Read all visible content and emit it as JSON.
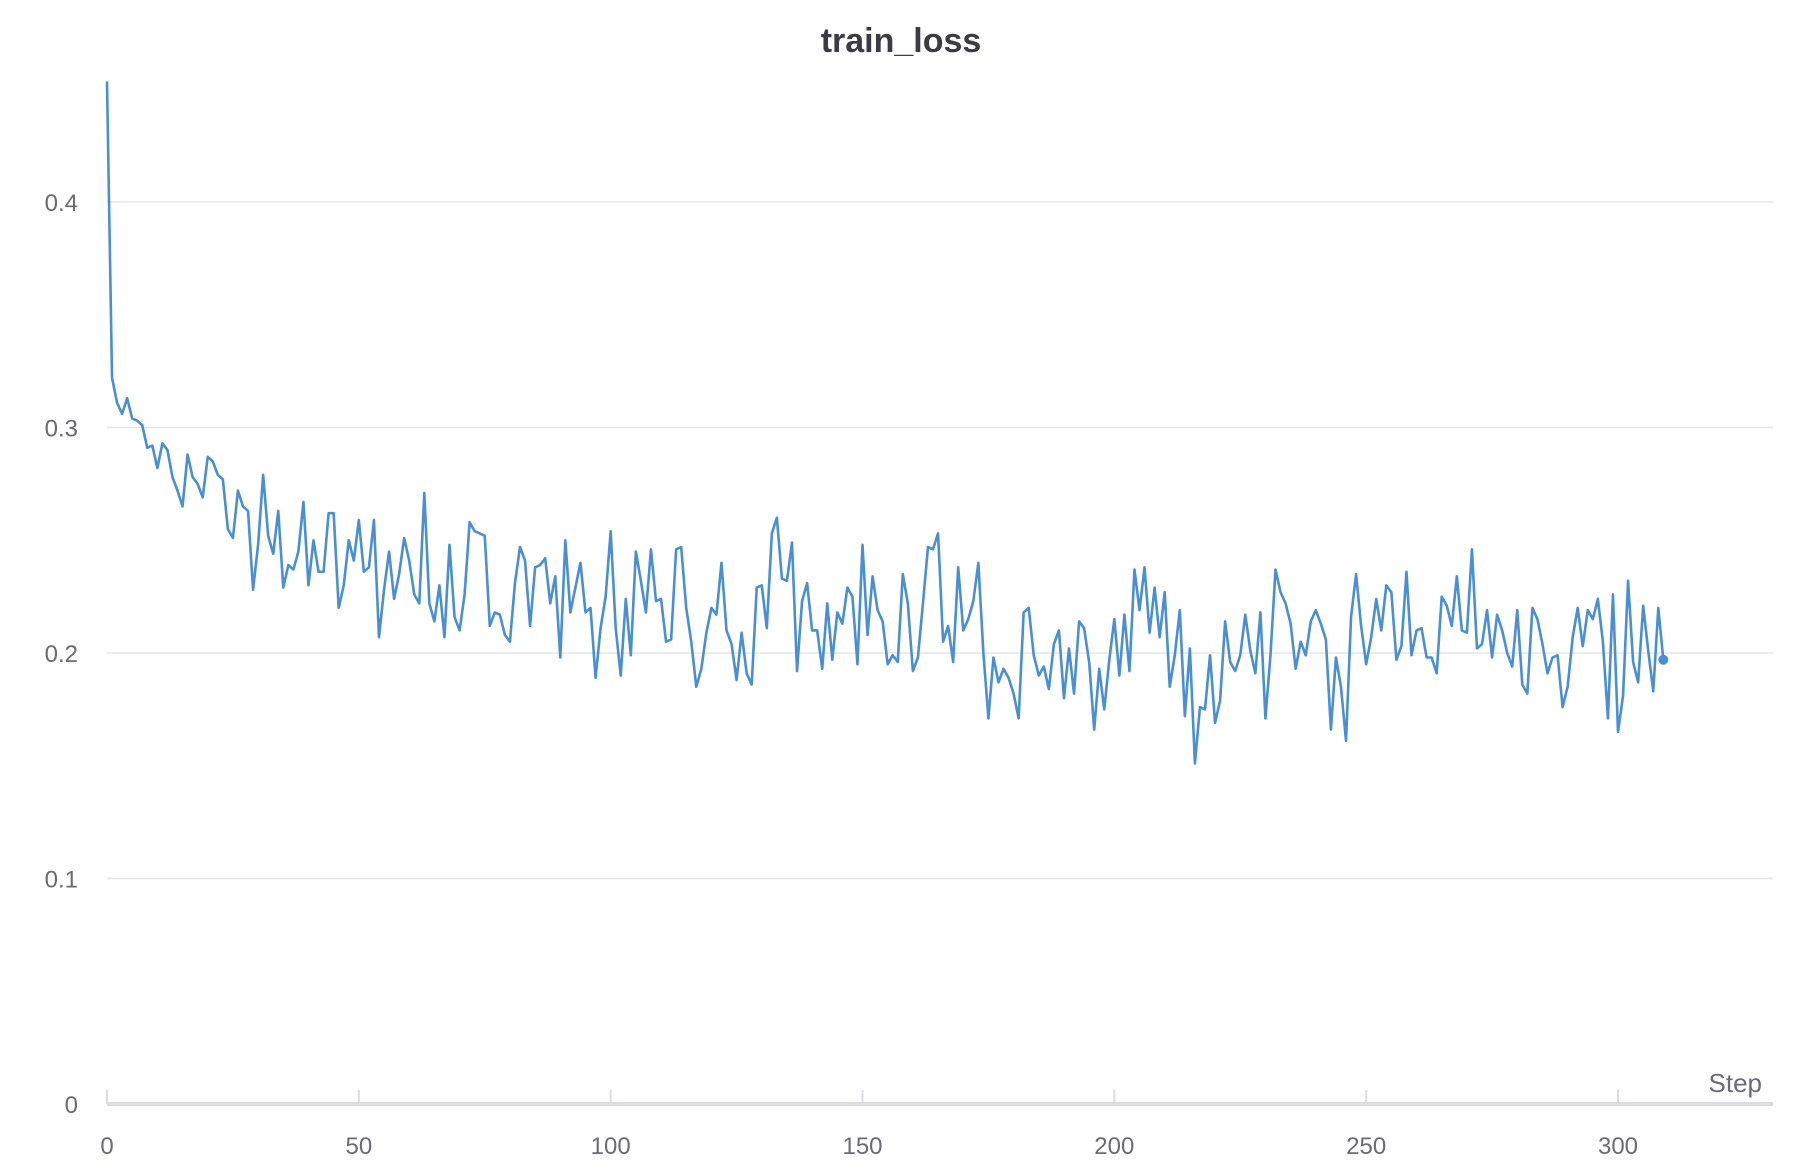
{
  "chart_data": {
    "type": "line",
    "title": "train_loss",
    "xlabel": "Step",
    "ylabel": "",
    "xlim": [
      0,
      309
    ],
    "ylim": [
      0,
      0.46
    ],
    "x_ticks": [
      "0",
      "50",
      "100",
      "150",
      "200",
      "250",
      "300"
    ],
    "y_ticks": [
      "0",
      "0.1",
      "0.2",
      "0.3",
      "0.4"
    ],
    "grid": "horizontal",
    "legend": "none",
    "series": [
      {
        "color": "#4a8fd4",
        "x_start": 0,
        "x_step": 1,
        "values": [
          0.453,
          0.322,
          0.311,
          0.306,
          0.313,
          0.304,
          0.303,
          0.301,
          0.291,
          0.292,
          0.282,
          0.293,
          0.29,
          0.278,
          0.272,
          0.265,
          0.288,
          0.278,
          0.275,
          0.269,
          0.287,
          0.285,
          0.279,
          0.277,
          0.255,
          0.251,
          0.272,
          0.265,
          0.263,
          0.228,
          0.248,
          0.279,
          0.252,
          0.244,
          0.263,
          0.229,
          0.239,
          0.237,
          0.245,
          0.267,
          0.23,
          0.25,
          0.236,
          0.236,
          0.262,
          0.262,
          0.22,
          0.23,
          0.25,
          0.241,
          0.259,
          0.236,
          0.238,
          0.259,
          0.207,
          0.228,
          0.245,
          0.224,
          0.235,
          0.251,
          0.241,
          0.226,
          0.222,
          0.271,
          0.222,
          0.214,
          0.23,
          0.207,
          0.248,
          0.216,
          0.21,
          0.226,
          0.258,
          0.254,
          0.253,
          0.252,
          0.212,
          0.218,
          0.217,
          0.208,
          0.205,
          0.231,
          0.247,
          0.241,
          0.212,
          0.238,
          0.239,
          0.242,
          0.222,
          0.234,
          0.198,
          0.25,
          0.218,
          0.229,
          0.24,
          0.218,
          0.22,
          0.189,
          0.211,
          0.225,
          0.254,
          0.211,
          0.19,
          0.224,
          0.199,
          0.245,
          0.232,
          0.218,
          0.246,
          0.223,
          0.224,
          0.205,
          0.206,
          0.246,
          0.247,
          0.22,
          0.205,
          0.185,
          0.193,
          0.209,
          0.22,
          0.217,
          0.24,
          0.21,
          0.204,
          0.188,
          0.209,
          0.191,
          0.186,
          0.229,
          0.23,
          0.211,
          0.253,
          0.26,
          0.233,
          0.232,
          0.249,
          0.192,
          0.223,
          0.231,
          0.21,
          0.21,
          0.193,
          0.222,
          0.197,
          0.218,
          0.213,
          0.229,
          0.225,
          0.195,
          0.248,
          0.208,
          0.234,
          0.219,
          0.214,
          0.195,
          0.199,
          0.196,
          0.235,
          0.222,
          0.192,
          0.198,
          0.222,
          0.247,
          0.246,
          0.253,
          0.205,
          0.212,
          0.196,
          0.238,
          0.21,
          0.215,
          0.223,
          0.24,
          0.2,
          0.171,
          0.198,
          0.187,
          0.193,
          0.189,
          0.182,
          0.171,
          0.218,
          0.22,
          0.199,
          0.19,
          0.194,
          0.184,
          0.204,
          0.21,
          0.18,
          0.202,
          0.182,
          0.214,
          0.211,
          0.196,
          0.166,
          0.193,
          0.175,
          0.197,
          0.215,
          0.19,
          0.217,
          0.192,
          0.237,
          0.219,
          0.238,
          0.209,
          0.229,
          0.207,
          0.227,
          0.185,
          0.199,
          0.219,
          0.172,
          0.202,
          0.151,
          0.176,
          0.175,
          0.199,
          0.169,
          0.179,
          0.214,
          0.196,
          0.192,
          0.199,
          0.217,
          0.201,
          0.191,
          0.218,
          0.171,
          0.199,
          0.237,
          0.227,
          0.222,
          0.213,
          0.193,
          0.205,
          0.199,
          0.214,
          0.219,
          0.213,
          0.206,
          0.166,
          0.198,
          0.185,
          0.161,
          0.216,
          0.235,
          0.212,
          0.195,
          0.207,
          0.224,
          0.21,
          0.23,
          0.227,
          0.197,
          0.203,
          0.236,
          0.199,
          0.21,
          0.211,
          0.198,
          0.198,
          0.191,
          0.225,
          0.221,
          0.212,
          0.234,
          0.21,
          0.209,
          0.246,
          0.202,
          0.204,
          0.219,
          0.198,
          0.217,
          0.21,
          0.2,
          0.194,
          0.219,
          0.186,
          0.182,
          0.22,
          0.215,
          0.204,
          0.191,
          0.198,
          0.199,
          0.176,
          0.185,
          0.207,
          0.22,
          0.203,
          0.219,
          0.215,
          0.224,
          0.205,
          0.171,
          0.226,
          0.165,
          0.181,
          0.232,
          0.196,
          0.187,
          0.221,
          0.201,
          0.183,
          0.22,
          0.197
        ]
      }
    ]
  }
}
